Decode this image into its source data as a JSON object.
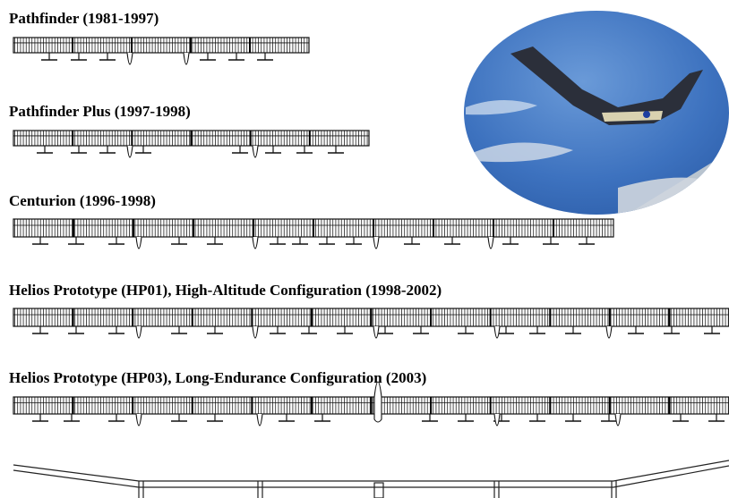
{
  "aircraft": [
    {
      "label": "Pathfinder (1981-1997)"
    },
    {
      "label": "Pathfinder Plus (1997-1998)"
    },
    {
      "label": "Centurion (1996-1998)"
    },
    {
      "label": "Helios Prototype (HP01), High-Altitude Configuration (1998-2002)"
    },
    {
      "label": "Helios Prototype (HP03), Long-Endurance Configuration (2003)"
    }
  ]
}
